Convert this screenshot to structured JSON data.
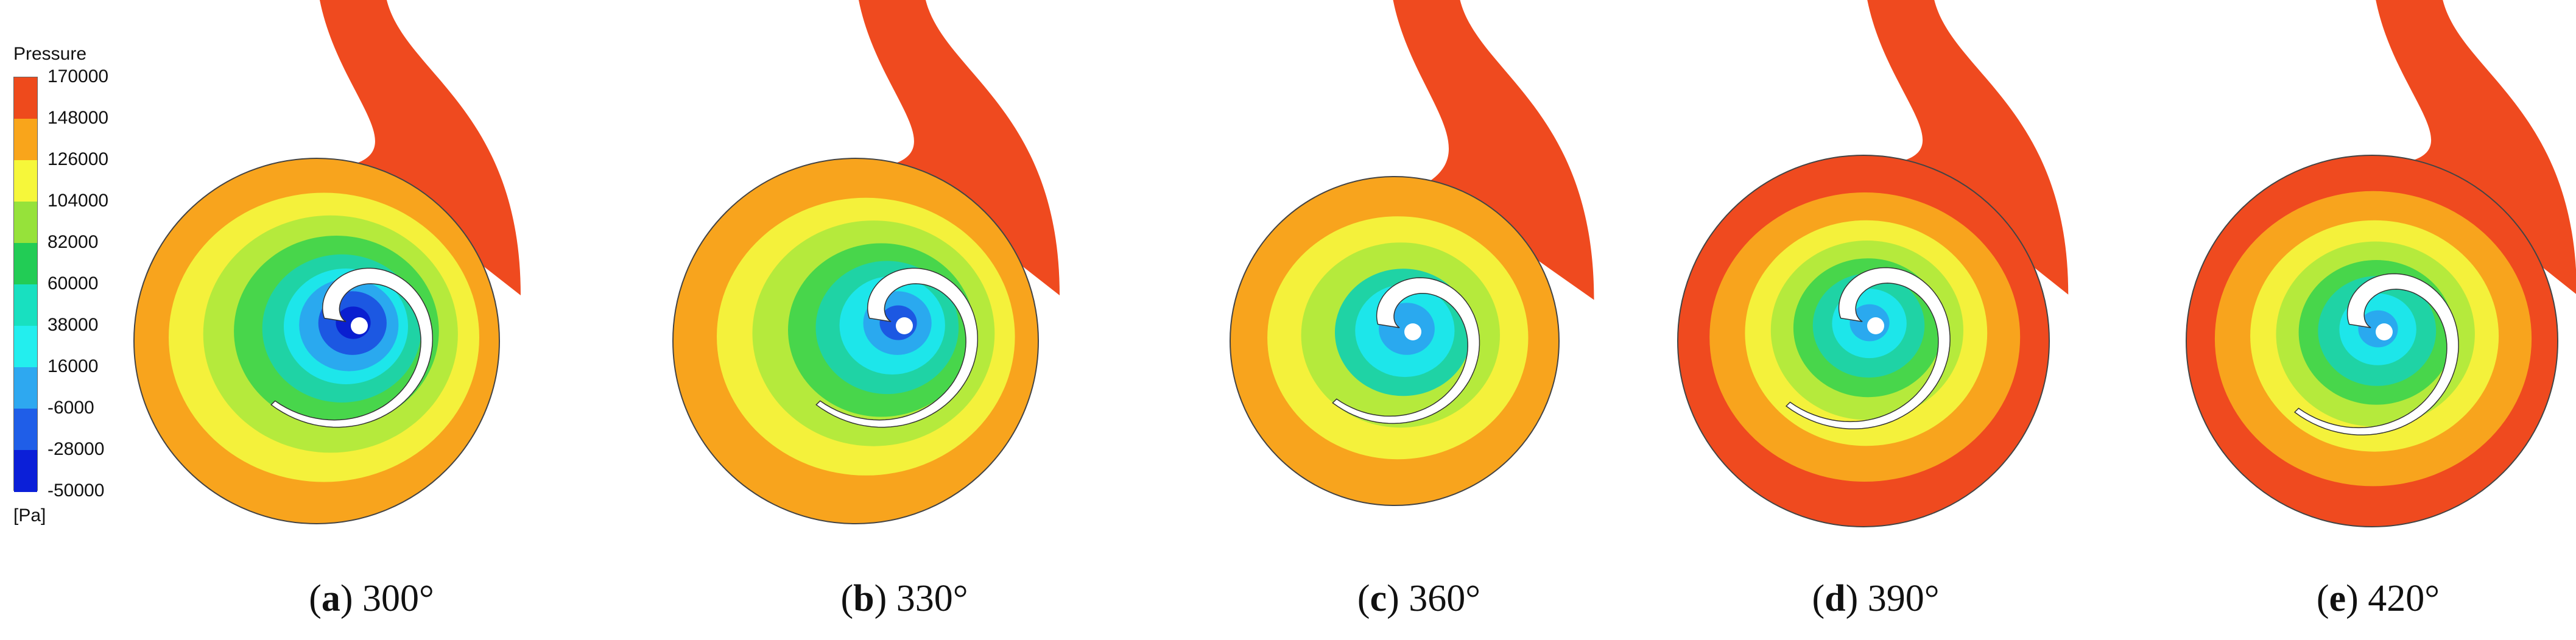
{
  "legend": {
    "title": "Pressure",
    "unit": "[Pa]",
    "ticks": [
      "170000",
      "148000",
      "126000",
      "104000",
      "82000",
      "60000",
      "38000",
      "16000",
      "-6000",
      "-28000",
      "-50000"
    ],
    "colors": [
      "#ee4a1c",
      "#f9a51b",
      "#f6f73a",
      "#96e23a",
      "#22cc55",
      "#18e0c0",
      "#23eeee",
      "#2ea8f0",
      "#1f5ee8",
      "#0b1fd8"
    ]
  },
  "panels": [
    {
      "letter": "a",
      "angle": "300°",
      "text_open": "(",
      "text_close": ")"
    },
    {
      "letter": "b",
      "angle": "330°",
      "text_open": "(",
      "text_close": ")"
    },
    {
      "letter": "c",
      "angle": "360°",
      "text_open": "(",
      "text_close": ")"
    },
    {
      "letter": "d",
      "angle": "390°",
      "text_open": "(",
      "text_close": ")"
    },
    {
      "letter": "e",
      "angle": "420°",
      "text_open": "(",
      "text_close": ")"
    }
  ],
  "contour_colors": {
    "red": "#ef4a1f",
    "orange": "#f8a41d",
    "yellow": "#f4f13b",
    "light_green": "#b5ea3c",
    "green": "#48d64b",
    "teal": "#1fd3a5",
    "cyan": "#1de6ea",
    "light_blue": "#2aa9ef",
    "blue": "#1c58e2",
    "dark_blue": "#0a1fd0"
  }
}
